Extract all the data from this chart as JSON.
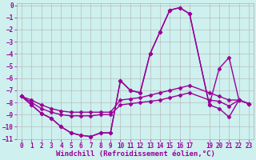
{
  "xlabel": "Windchill (Refroidissement éolien,°C)",
  "bg_color": "#cef0ee",
  "grid_color": "#b0b0b0",
  "line_color": "#990099",
  "xlim": [
    -0.5,
    23.5
  ],
  "ylim": [
    -11,
    0.2
  ],
  "xticks": [
    0,
    1,
    2,
    3,
    4,
    5,
    6,
    7,
    8,
    9,
    10,
    11,
    12,
    13,
    14,
    15,
    16,
    17,
    19,
    20,
    21,
    22,
    23
  ],
  "yticks": [
    0,
    -1,
    -2,
    -3,
    -4,
    -5,
    -6,
    -7,
    -8,
    -9,
    -10,
    -11
  ],
  "x_all": [
    0,
    1,
    2,
    3,
    4,
    5,
    6,
    7,
    8,
    9,
    10,
    11,
    12,
    13,
    14,
    15,
    16,
    17,
    19,
    20,
    21,
    22,
    23
  ],
  "curve_main": [
    -7.5,
    -8.2,
    -8.9,
    -9.3,
    -10.0,
    -10.5,
    -10.7,
    -10.8,
    -10.5,
    -10.5,
    -6.2,
    -7.0,
    -7.2,
    -4.0,
    -2.2,
    -0.4,
    -0.2,
    -0.7,
    -8.2,
    -8.5,
    -9.2,
    -7.8,
    -8.1
  ],
  "curve_second": [
    -7.5,
    -8.2,
    -8.9,
    -9.3,
    -10.0,
    -10.5,
    -10.7,
    -10.8,
    -10.5,
    -10.5,
    -6.2,
    -7.0,
    -7.2,
    -4.0,
    -2.2,
    -0.4,
    -0.2,
    -0.7,
    -8.2,
    -5.2,
    -4.3,
    -7.8,
    -8.1
  ],
  "curve_flat1": [
    -7.5,
    -7.8,
    -8.2,
    -8.5,
    -8.7,
    -8.8,
    -8.8,
    -8.8,
    -8.8,
    -8.8,
    -7.8,
    -7.7,
    -7.6,
    -7.4,
    -7.2,
    -7.0,
    -6.8,
    -6.6,
    -7.2,
    -7.5,
    -7.8,
    -7.8,
    -8.1
  ],
  "curve_flat2": [
    -7.5,
    -8.0,
    -8.5,
    -8.8,
    -9.0,
    -9.1,
    -9.1,
    -9.1,
    -9.0,
    -9.0,
    -8.2,
    -8.1,
    -8.0,
    -7.9,
    -7.8,
    -7.6,
    -7.4,
    -7.2,
    -7.8,
    -7.9,
    -8.3,
    -7.8,
    -8.1
  ],
  "marker": "D",
  "markersize": 2.5,
  "linewidth": 1.0,
  "tick_fontsize": 5.5,
  "label_fontsize": 6.5
}
